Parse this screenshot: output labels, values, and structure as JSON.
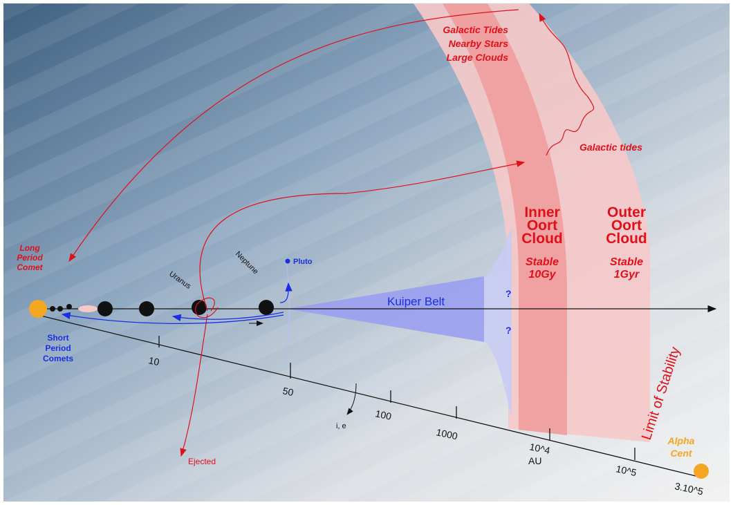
{
  "labels": {
    "outer_influences": [
      "Galactic Tides",
      "Nearby Stars",
      "Large Clouds"
    ],
    "galactic_tides": "Galactic tides",
    "inner_oort": [
      "Inner",
      "Oort",
      "Cloud"
    ],
    "inner_stable": [
      "Stable",
      "10Gy"
    ],
    "outer_oort": [
      "Outer",
      "Oort",
      "Cloud"
    ],
    "outer_stable": [
      "Stable",
      "1Gyr"
    ],
    "limit": "Limit of Stability",
    "long_period": [
      "Long",
      "Period",
      "Comet"
    ],
    "pluto": "Pluto",
    "uranus": "Uranus",
    "neptune": "Neptune",
    "kuiper": "Kuiper Belt",
    "unknown": [
      "?",
      "?"
    ],
    "short_period": [
      "Short",
      "Period",
      "Comets"
    ],
    "inclination": "i, e",
    "ejected": "Ejected",
    "alpha_cent": [
      "Alpha",
      "Cent"
    ]
  },
  "axis": {
    "ticks": [
      "10",
      "50",
      "100",
      "1000",
      "10^4",
      "10^5",
      "3.10^5"
    ],
    "unit": "AU"
  }
}
